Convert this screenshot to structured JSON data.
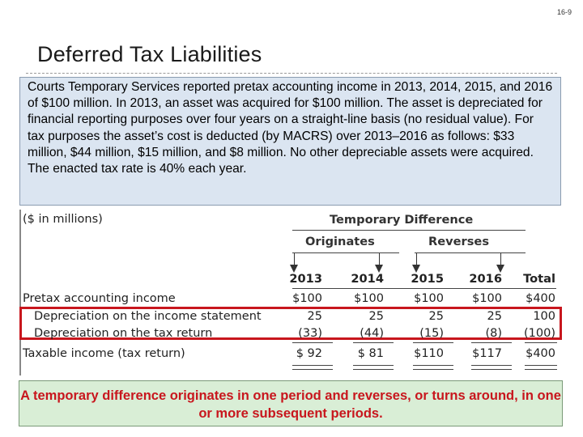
{
  "page_number": "16-9",
  "title": "Deferred Tax Liabilities",
  "intro_text": "Courts Temporary Services reported pretax accounting income in 2013, 2014, 2015, and 2016 of $100 million. In 2013, an asset was acquired for $100 million. The asset is depreciated for financial reporting purposes over four years on a straight-line basis (no residual value). For tax purposes the asset’s cost is deducted (by MACRS) over 2013–2016 as follows: $33 million, $44 million, $15 million, and $8 million. No other depreciable assets were acquired. The enacted tax rate is 40% each year.",
  "table": {
    "units_label": "($ in millions)",
    "group_header": "Temporary Difference",
    "originates_label": "Originates",
    "reverses_label": "Reverses",
    "columns": [
      "2013",
      "2014",
      "2015",
      "2016",
      "Total"
    ],
    "rows": [
      {
        "label": "Pretax accounting income",
        "values": [
          "$100",
          "$100",
          "$100",
          "$100",
          "$400"
        ]
      },
      {
        "label": "Depreciation on the income statement",
        "values": [
          "25",
          "25",
          "25",
          "25",
          "100"
        ]
      },
      {
        "label": "Depreciation on the tax return",
        "values": [
          "(33)",
          "(44)",
          "(15)",
          "(8)",
          "(100)"
        ]
      },
      {
        "label": "Taxable income (tax return)",
        "values": [
          "$ 92",
          "$ 81",
          "$110",
          "$117",
          "$400"
        ]
      }
    ]
  },
  "footer_text": "A temporary difference originates in one period and reverses, or turns around, in one or more subsequent periods.",
  "colors": {
    "intro_background": "#dbe5f1",
    "footer_background": "#d9eed6",
    "highlight_red": "#c8161d"
  }
}
